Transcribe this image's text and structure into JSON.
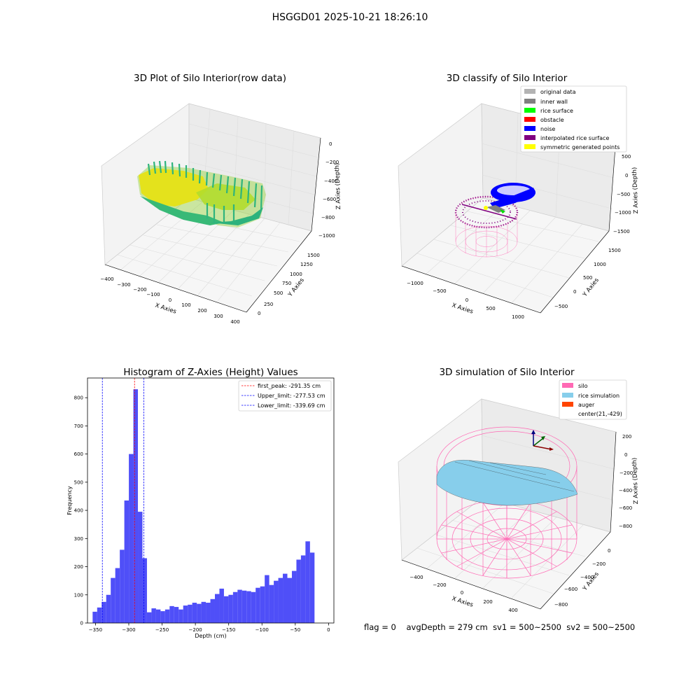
{
  "figure": {
    "title": "HSGGD01 2025-10-21 18:26:10",
    "status": {
      "flag": "flag = 0",
      "avg_depth": "avgDepth = 279 cm",
      "sv1": "sv1 = 500~2500",
      "sv2": "sv2 = 500~2500"
    }
  },
  "colors": {
    "hist_bar": "#4f4ff8",
    "first_peak": "#ff0000",
    "limits": "#0000ff",
    "silo": "#ff69b4",
    "rice": "#87ceeb",
    "auger": "#ff4500",
    "noise": "#0000ff",
    "rice_surface": "#00ff00",
    "obstacle": "#ff0000",
    "interpolated": "#800080",
    "symmetric": "#ffff00",
    "original": "#b3b3b3",
    "inner_wall": "#808080"
  },
  "chart_data": [
    {
      "type": "scatter",
      "title": "3D Plot of Silo Interior(row data)",
      "xlabel": "X Axies",
      "ylabel": "Y Axies",
      "zlabel": "Z Axies (Depth)",
      "x_ticks": [
        "−400",
        "−300",
        "−200",
        "−100",
        "0",
        "100",
        "200",
        "300",
        "400"
      ],
      "y_ticks": [
        "0",
        "250",
        "500",
        "750",
        "1000",
        "1250",
        "1500"
      ],
      "z_ticks": [
        "0",
        "−200",
        "−400",
        "−600",
        "−800",
        "−1000"
      ]
    },
    {
      "type": "scatter",
      "title": "3D classify of Silo Interior",
      "xlabel": "X Axies",
      "ylabel": "Y Axies",
      "zlabel": "Z Axies (Depth)",
      "x_ticks": [
        "−1000",
        "−500",
        "0",
        "500",
        "1000"
      ],
      "y_ticks": [
        "−500",
        "0",
        "500",
        "1000",
        "1500"
      ],
      "z_ticks": [
        "500",
        "0",
        "−500",
        "−1000",
        "−1500"
      ],
      "legend": [
        {
          "label": "original data",
          "color": "#b3b3b3"
        },
        {
          "label": "inner wall",
          "color": "#808080"
        },
        {
          "label": "rice surface",
          "color": "#00ff00"
        },
        {
          "label": "obstacle",
          "color": "#ff0000"
        },
        {
          "label": "noise",
          "color": "#0000ff"
        },
        {
          "label": "interpolated rice surface",
          "color": "#800080"
        },
        {
          "label": "symmetric generated points",
          "color": "#ffff00"
        }
      ]
    },
    {
      "type": "bar",
      "title": "Histogram of Z-Axies (Height) Values",
      "xlabel": "Depth (cm)",
      "ylabel": "Frequency",
      "xlim": [
        -362,
        8
      ],
      "ylim": [
        0,
        870
      ],
      "bin_width": 6.8,
      "x_ticks": [
        -350,
        -300,
        -250,
        -200,
        -150,
        -100,
        -50,
        0
      ],
      "x_tick_labels": [
        "−350",
        "−300",
        "−250",
        "−200",
        "−150",
        "−100",
        "−50",
        "0"
      ],
      "y_ticks": [
        0,
        100,
        200,
        300,
        400,
        500,
        600,
        700,
        800
      ],
      "bin_starts": [
        -354.3,
        -347.5,
        -340.7,
        -333.9,
        -327.1,
        -320.3,
        -313.5,
        -306.7,
        -299.9,
        -293.1,
        -286.3,
        -279.5,
        -272.7,
        -265.9,
        -259.1,
        -252.3,
        -245.5,
        -238.7,
        -231.9,
        -225.1,
        -218.3,
        -211.5,
        -204.7,
        -197.9,
        -191.1,
        -184.3,
        -177.5,
        -170.7,
        -163.9,
        -157.1,
        -150.3,
        -143.5,
        -136.7,
        -129.9,
        -123.1,
        -116.3,
        -109.5,
        -102.7,
        -95.9,
        -89.1,
        -82.3,
        -75.5,
        -68.7,
        -61.9,
        -55.1,
        -48.3,
        -41.5,
        -34.7,
        -27.9,
        -21.1,
        -14.3
      ],
      "values": [
        40,
        55,
        75,
        100,
        160,
        195,
        260,
        435,
        600,
        830,
        395,
        230,
        38,
        52,
        48,
        42,
        48,
        60,
        57,
        48,
        62,
        65,
        72,
        68,
        75,
        72,
        85,
        103,
        122,
        95,
        100,
        110,
        118,
        115,
        113,
        110,
        125,
        130,
        170,
        135,
        150,
        160,
        175,
        160,
        185,
        225,
        240,
        290,
        250,
        0,
        0
      ],
      "vlines": [
        {
          "label": "first_peak: -291.35 cm",
          "x": -291.35,
          "color": "#ff0000"
        },
        {
          "label": "Upper_limit: -277.53 cm",
          "x": -277.53,
          "color": "#0000ff"
        },
        {
          "label": "Lower_limit: -339.69 cm",
          "x": -339.69,
          "color": "#0000ff"
        }
      ]
    },
    {
      "type": "area",
      "title": "3D simulation of Silo Interior",
      "xlabel": "X Axies",
      "ylabel": "Y Axies",
      "zlabel": "Z Axies (Depth)",
      "x_ticks": [
        "−400",
        "−200",
        "0",
        "200",
        "400"
      ],
      "y_ticks": [
        "0",
        "−200",
        "−400",
        "−600",
        "−800"
      ],
      "z_ticks": [
        "200",
        "0",
        "−200",
        "−400",
        "−600",
        "−800"
      ],
      "legend": [
        {
          "label": "silo",
          "color": "#ff69b4"
        },
        {
          "label": "rice simulation",
          "color": "#87ceeb"
        },
        {
          "label": "auger",
          "color": "#ff4500"
        },
        {
          "label": "center(21,-429)",
          "color": ""
        }
      ]
    }
  ]
}
